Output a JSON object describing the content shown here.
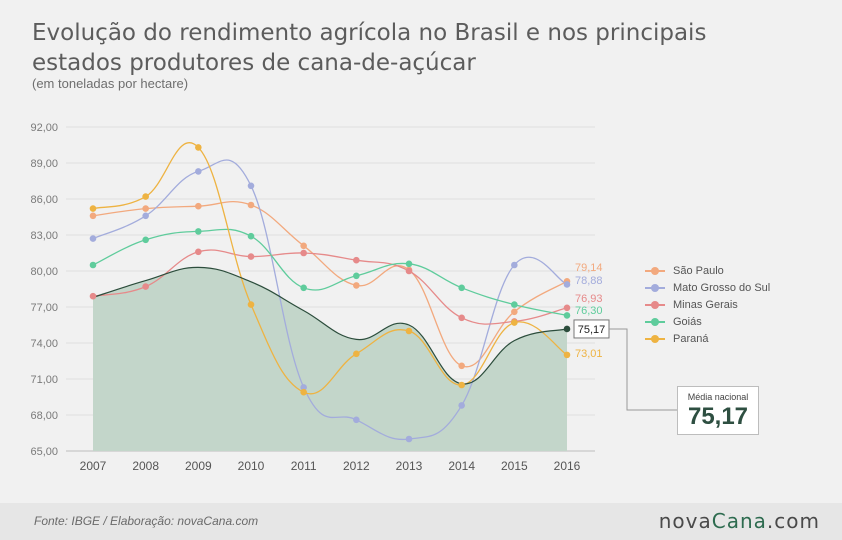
{
  "header": {
    "title": "Evolução do rendimento agrícola no Brasil e nos principais estados produtores de cana-de-açúcar",
    "subtitle": "(em toneladas por hectare)"
  },
  "footer": {
    "source": "Fonte: IBGE / Elaboração:  novaCana.com",
    "logo_part1": "nova",
    "logo_part2": "Cana",
    "logo_part3": ".com"
  },
  "media_box": {
    "label": "Média nacional",
    "value": "75,17"
  },
  "colors": {
    "sao_paulo": "#f2a97e",
    "mato_grosso_do_sul": "#a3acdc",
    "minas_gerais": "#e68a8a",
    "goias": "#5fcc9c",
    "parana": "#eeb342",
    "nacional_fill": "#c3d6ca",
    "nacional_line": "#2c4d3c"
  },
  "chart_data": {
    "type": "line",
    "x": [
      "2007",
      "2008",
      "2009",
      "2010",
      "2011",
      "2012",
      "2013",
      "2014",
      "2015",
      "2016"
    ],
    "ylim": [
      65,
      92
    ],
    "yticks": [
      "92,00",
      "89,00",
      "86,00",
      "83,00",
      "80,00",
      "77,00",
      "74,00",
      "71,00",
      "68,00",
      "65,00"
    ],
    "series": [
      {
        "name": "São Paulo",
        "color": "#f2a97e",
        "values": [
          84.6,
          85.2,
          85.4,
          85.5,
          82.1,
          78.8,
          80.1,
          72.1,
          76.6,
          79.14
        ],
        "end_label": "79,14"
      },
      {
        "name": "Mato Grosso do Sul",
        "color": "#a3acdc",
        "values": [
          82.7,
          84.6,
          88.3,
          87.1,
          70.3,
          67.6,
          66.0,
          68.8,
          80.5,
          78.88
        ],
        "end_label": "78,88"
      },
      {
        "name": "Minas Gerais",
        "color": "#e68a8a",
        "values": [
          77.9,
          78.7,
          81.6,
          81.2,
          81.5,
          80.9,
          80.0,
          76.1,
          75.8,
          76.93
        ],
        "end_label": "76,93"
      },
      {
        "name": "Goiás",
        "color": "#5fcc9c",
        "values": [
          80.5,
          82.6,
          83.3,
          82.9,
          78.6,
          79.6,
          80.6,
          78.6,
          77.2,
          76.3
        ],
        "end_label": "76,30"
      },
      {
        "name": "Paraná",
        "color": "#eeb342",
        "values": [
          85.2,
          86.2,
          90.3,
          77.2,
          69.9,
          73.1,
          75.0,
          70.5,
          75.7,
          73.01
        ],
        "end_label": "73,01"
      }
    ],
    "national": {
      "name": "Média nacional",
      "values": [
        77.8,
        79.2,
        80.3,
        79.1,
        76.7,
        74.3,
        75.5,
        70.6,
        74.2,
        75.17
      ],
      "end_label": "75,17"
    }
  }
}
